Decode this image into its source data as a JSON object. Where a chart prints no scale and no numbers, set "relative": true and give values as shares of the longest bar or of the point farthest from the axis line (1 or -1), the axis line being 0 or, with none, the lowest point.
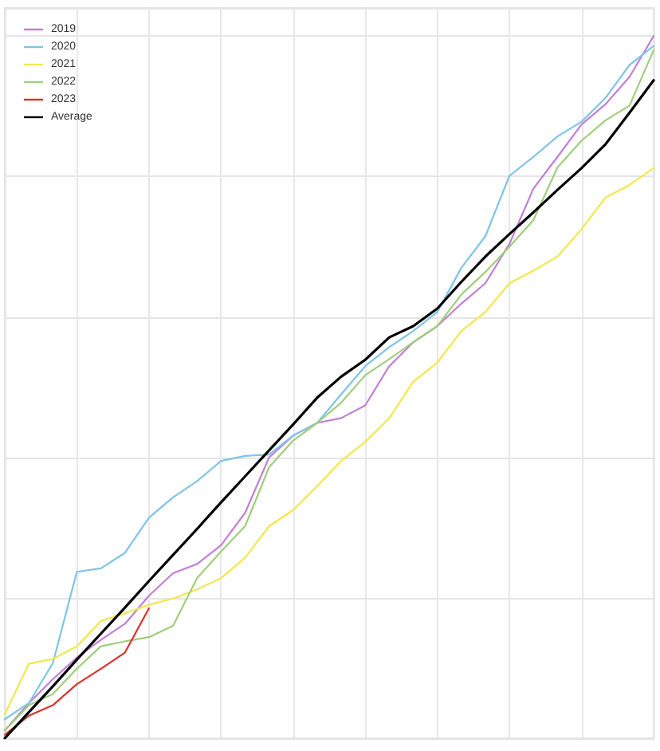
{
  "chart_data": {
    "type": "line",
    "relative": true,
    "grid": true,
    "legend": "top left",
    "marker": "none",
    "line_style": "solid",
    "categories": [
      null,
      null,
      null,
      null,
      null,
      null,
      null,
      null,
      null,
      null,
      null,
      null,
      null,
      null,
      null,
      null,
      null,
      null,
      null,
      null,
      null,
      null,
      null,
      null,
      null,
      null,
      null,
      null
    ],
    "series": [
      {
        "name": "2019",
        "color": "#c07fd6",
        "values": [
          0.011,
          0.05,
          0.084,
          0.115,
          0.14,
          0.163,
          0.203,
          0.235,
          0.248,
          0.275,
          0.321,
          0.4,
          0.431,
          0.449,
          0.456,
          0.474,
          0.53,
          0.564,
          0.587,
          0.619,
          0.648,
          0.704,
          0.783,
          0.828,
          0.874,
          0.903,
          0.942,
          1.0
        ]
      },
      {
        "name": "2020",
        "color": "#7fc4e6",
        "values": [
          0.027,
          0.05,
          0.107,
          0.237,
          0.242,
          0.264,
          0.314,
          0.343,
          0.366,
          0.395,
          0.402,
          0.404,
          0.431,
          0.449,
          0.49,
          0.53,
          0.557,
          0.58,
          0.607,
          0.67,
          0.715,
          0.801,
          0.828,
          0.857,
          0.878,
          0.912,
          0.959,
          0.986
        ]
      },
      {
        "name": "2021",
        "color": "#f2e84a",
        "values": [
          0.034,
          0.106,
          0.113,
          0.131,
          0.167,
          0.178,
          0.19,
          0.199,
          0.212,
          0.228,
          0.257,
          0.302,
          0.325,
          0.359,
          0.395,
          0.422,
          0.456,
          0.508,
          0.535,
          0.58,
          0.607,
          0.648,
          0.666,
          0.686,
          0.725,
          0.77,
          0.788,
          0.812
        ]
      },
      {
        "name": "2022",
        "color": "#9fce7c",
        "values": [
          0.011,
          0.047,
          0.063,
          0.099,
          0.131,
          0.138,
          0.144,
          0.16,
          0.228,
          0.266,
          0.302,
          0.386,
          0.424,
          0.449,
          0.478,
          0.517,
          0.54,
          0.564,
          0.587,
          0.632,
          0.664,
          0.7,
          0.738,
          0.813,
          0.851,
          0.88,
          0.901,
          0.98
        ]
      },
      {
        "name": "2023",
        "color": "#d8322a",
        "values": [
          0.005,
          0.032,
          0.047,
          0.077,
          0.099,
          0.122,
          0.185,
          null,
          null,
          null,
          null,
          null,
          null,
          null,
          null,
          null,
          null,
          null,
          null,
          null,
          null,
          null,
          null,
          null,
          null,
          null,
          null,
          null
        ]
      },
      {
        "name": "Average",
        "color": "#000000",
        "values": [
          0,
          0.037,
          0.074,
          0.112,
          0.149,
          0.186,
          0.224,
          0.261,
          0.298,
          0.336,
          0.373,
          0.41,
          0.447,
          0.485,
          0.515,
          0.539,
          0.571,
          0.587,
          0.612,
          0.65,
          0.686,
          0.718,
          0.749,
          0.781,
          0.812,
          0.846,
          0.891,
          0.937
        ]
      }
    ]
  }
}
